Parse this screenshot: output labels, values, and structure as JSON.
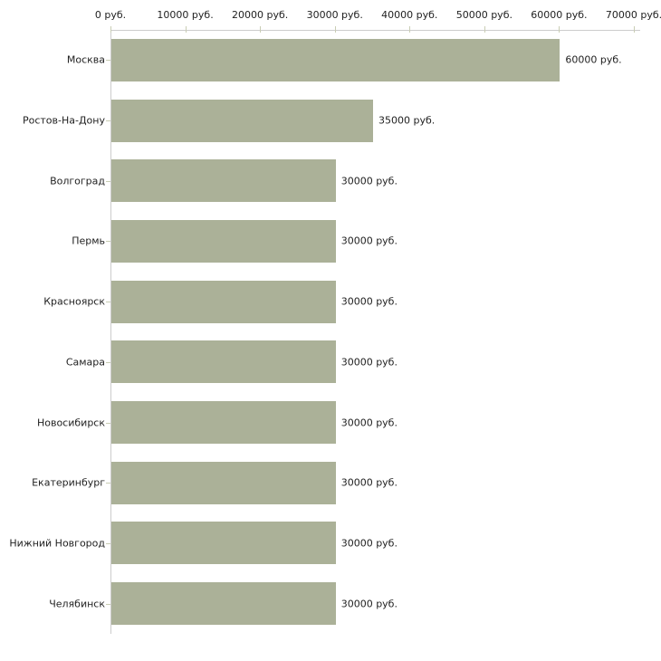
{
  "chart_data": {
    "type": "bar",
    "orientation": "horizontal",
    "title": "",
    "xlabel": "",
    "ylabel": "",
    "categories": [
      "Москва",
      "Ростов-На-Дону",
      "Волгоград",
      "Пермь",
      "Красноярск",
      "Самара",
      "Новосибирск",
      "Екатеринбург",
      "Нижний Новгород",
      "Челябинск"
    ],
    "values": [
      60000,
      35000,
      30000,
      30000,
      30000,
      30000,
      30000,
      30000,
      30000,
      30000
    ],
    "value_labels": [
      "60000 руб.",
      "35000 руб.",
      "30000 руб.",
      "30000 руб.",
      "30000 руб.",
      "30000 руб.",
      "30000 руб.",
      "30000 руб.",
      "30000 руб.",
      "30000 руб."
    ],
    "x_ticks": [
      0,
      10000,
      20000,
      30000,
      40000,
      50000,
      60000,
      70000
    ],
    "x_tick_labels": [
      "0 руб.",
      "10000 руб.",
      "20000 руб.",
      "30000 руб.",
      "40000 руб.",
      "50000 руб.",
      "60000 руб.",
      "70000 руб."
    ],
    "xlim": [
      0,
      70000
    ],
    "grid": false,
    "legend": false,
    "colors": {
      "bar": "#abb198",
      "axis_line": "#cccccc",
      "tick_mark": "#c9cdb4",
      "text": "#222222"
    }
  }
}
